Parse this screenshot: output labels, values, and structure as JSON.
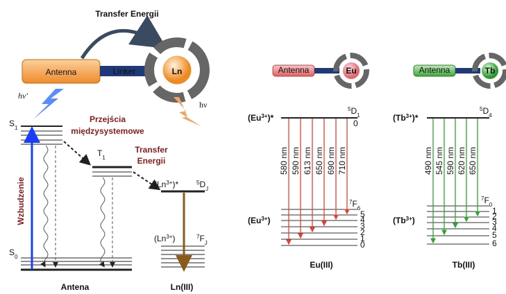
{
  "title": "Transfer Energii",
  "scheme": {
    "antenna": "Antenna",
    "linker": "Linker",
    "ion": "Ln",
    "hv_absorbed": "hν'",
    "hv_emitted": "hν"
  },
  "antenna_levels": {
    "s1": {
      "base": "S",
      "sub": "1"
    },
    "s0": {
      "base": "S",
      "sub": "0"
    },
    "t1": {
      "base": "T",
      "sub": "1"
    },
    "isc": [
      "Przejścia",
      "międzysystemowe"
    ],
    "transfer": [
      "Transfer",
      "Energii"
    ],
    "excitation": "Wzbudzenie",
    "caption": "Antena"
  },
  "ln_levels": {
    "excited": {
      "pre": "(Ln",
      "sup": "3+",
      "post": ")*"
    },
    "excited_term": {
      "sup": "5",
      "base": "D",
      "sub": "J"
    },
    "ground": {
      "pre": "(Ln",
      "sup": "3+",
      "post": ")"
    },
    "ground_term": {
      "sup": "7",
      "base": "F",
      "sub": "J"
    },
    "caption": "Ln(III)"
  },
  "eu": {
    "antenna": "Antenna",
    "ion": "Eu",
    "excited": {
      "pre": "(Eu",
      "sup": "3+",
      "post": ")*"
    },
    "excited_term": {
      "sup": "5",
      "base": "D",
      "sub": "1"
    },
    "excited_sublevel": "0",
    "transitions": [
      "580 nm",
      "590 nm",
      "613 nm",
      "650 nm",
      "690 nm",
      "710 nm"
    ],
    "ground": {
      "pre": "(Eu",
      "sup": "3+",
      "post": ")"
    },
    "ground_term": {
      "sup": "7",
      "base": "F",
      "sub": "6"
    },
    "ground_sublevels": [
      "5",
      "4",
      "3",
      "2",
      "1",
      "0"
    ],
    "caption": "Eu(III)"
  },
  "tb": {
    "antenna": "Antenna",
    "ion": "Tb",
    "excited": {
      "pre": "(Tb",
      "sup": "3+",
      "post": ")*"
    },
    "excited_term": {
      "sup": "5",
      "base": "D",
      "sub": "4"
    },
    "transitions": [
      "490 nm",
      "545 nm",
      "590 nm",
      "620 nm",
      "650 nm"
    ],
    "ground": {
      "pre": "(Tb",
      "sup": "3+",
      "post": ")"
    },
    "ground_term": {
      "sup": "7",
      "base": "F",
      "sub": "0"
    },
    "ground_sublevels": [
      "1",
      "2",
      "3",
      "4",
      "5",
      "6"
    ],
    "caption": "Tb(III)"
  }
}
